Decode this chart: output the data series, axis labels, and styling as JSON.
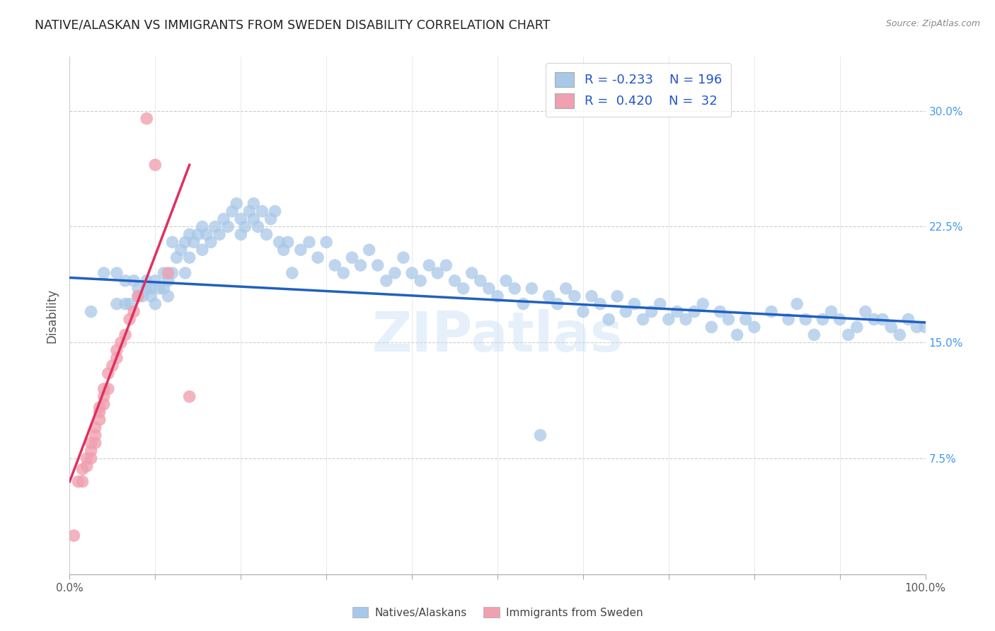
{
  "title": "NATIVE/ALASKAN VS IMMIGRANTS FROM SWEDEN DISABILITY CORRELATION CHART",
  "source": "Source: ZipAtlas.com",
  "ylabel": "Disability",
  "xlim": [
    0.0,
    1.0
  ],
  "ylim": [
    0.0,
    0.335
  ],
  "yticks": [
    0.075,
    0.15,
    0.225,
    0.3
  ],
  "ytick_labels": [
    "7.5%",
    "15.0%",
    "22.5%",
    "30.0%"
  ],
  "xticks": [
    0.0,
    0.1,
    0.2,
    0.3,
    0.4,
    0.5,
    0.6,
    0.7,
    0.8,
    0.9,
    1.0
  ],
  "xtick_labels": [
    "0.0%",
    "",
    "",
    "",
    "",
    "",
    "",
    "",
    "",
    "",
    "100.0%"
  ],
  "blue_color": "#a8c8e8",
  "pink_color": "#f0a0b0",
  "line_blue": "#2060c0",
  "line_pink": "#e03060",
  "legend_R1": "-0.233",
  "legend_N1": "196",
  "legend_R2": "0.420",
  "legend_N2": "32",
  "watermark": "ZIPatlas",
  "blue_scatter_x": [
    0.025,
    0.04,
    0.055,
    0.055,
    0.065,
    0.065,
    0.07,
    0.075,
    0.08,
    0.08,
    0.085,
    0.09,
    0.09,
    0.095,
    0.095,
    0.1,
    0.1,
    0.105,
    0.11,
    0.11,
    0.115,
    0.115,
    0.12,
    0.12,
    0.125,
    0.13,
    0.135,
    0.135,
    0.14,
    0.14,
    0.145,
    0.15,
    0.155,
    0.155,
    0.16,
    0.165,
    0.17,
    0.175,
    0.18,
    0.185,
    0.19,
    0.195,
    0.2,
    0.2,
    0.205,
    0.21,
    0.215,
    0.215,
    0.22,
    0.225,
    0.23,
    0.235,
    0.24,
    0.245,
    0.25,
    0.255,
    0.26,
    0.27,
    0.28,
    0.29,
    0.3,
    0.31,
    0.32,
    0.33,
    0.34,
    0.35,
    0.36,
    0.37,
    0.38,
    0.39,
    0.4,
    0.41,
    0.42,
    0.43,
    0.44,
    0.45,
    0.46,
    0.47,
    0.48,
    0.49,
    0.5,
    0.51,
    0.52,
    0.53,
    0.54,
    0.55,
    0.56,
    0.57,
    0.58,
    0.59,
    0.6,
    0.61,
    0.62,
    0.63,
    0.64,
    0.65,
    0.66,
    0.67,
    0.68,
    0.69,
    0.7,
    0.71,
    0.72,
    0.73,
    0.74,
    0.75,
    0.76,
    0.77,
    0.78,
    0.79,
    0.8,
    0.82,
    0.84,
    0.85,
    0.86,
    0.87,
    0.88,
    0.89,
    0.9,
    0.91,
    0.92,
    0.93,
    0.94,
    0.95,
    0.96,
    0.97,
    0.98,
    0.99,
    1.0
  ],
  "blue_scatter_y": [
    0.17,
    0.195,
    0.175,
    0.195,
    0.175,
    0.19,
    0.175,
    0.19,
    0.18,
    0.185,
    0.18,
    0.185,
    0.19,
    0.18,
    0.185,
    0.175,
    0.19,
    0.185,
    0.195,
    0.185,
    0.19,
    0.18,
    0.195,
    0.215,
    0.205,
    0.21,
    0.195,
    0.215,
    0.22,
    0.205,
    0.215,
    0.22,
    0.21,
    0.225,
    0.22,
    0.215,
    0.225,
    0.22,
    0.23,
    0.225,
    0.235,
    0.24,
    0.23,
    0.22,
    0.225,
    0.235,
    0.23,
    0.24,
    0.225,
    0.235,
    0.22,
    0.23,
    0.235,
    0.215,
    0.21,
    0.215,
    0.195,
    0.21,
    0.215,
    0.205,
    0.215,
    0.2,
    0.195,
    0.205,
    0.2,
    0.21,
    0.2,
    0.19,
    0.195,
    0.205,
    0.195,
    0.19,
    0.2,
    0.195,
    0.2,
    0.19,
    0.185,
    0.195,
    0.19,
    0.185,
    0.18,
    0.19,
    0.185,
    0.175,
    0.185,
    0.09,
    0.18,
    0.175,
    0.185,
    0.18,
    0.17,
    0.18,
    0.175,
    0.165,
    0.18,
    0.17,
    0.175,
    0.165,
    0.17,
    0.175,
    0.165,
    0.17,
    0.165,
    0.17,
    0.175,
    0.16,
    0.17,
    0.165,
    0.155,
    0.165,
    0.16,
    0.17,
    0.165,
    0.175,
    0.165,
    0.155,
    0.165,
    0.17,
    0.165,
    0.155,
    0.16,
    0.17,
    0.165,
    0.165,
    0.16,
    0.155,
    0.165,
    0.16,
    0.16
  ],
  "pink_scatter_x": [
    0.005,
    0.01,
    0.015,
    0.015,
    0.02,
    0.02,
    0.025,
    0.025,
    0.025,
    0.03,
    0.03,
    0.03,
    0.035,
    0.035,
    0.035,
    0.04,
    0.04,
    0.04,
    0.045,
    0.045,
    0.05,
    0.055,
    0.055,
    0.06,
    0.065,
    0.07,
    0.075,
    0.08,
    0.09,
    0.1,
    0.115,
    0.14
  ],
  "pink_scatter_y": [
    0.025,
    0.06,
    0.06,
    0.068,
    0.07,
    0.075,
    0.075,
    0.08,
    0.085,
    0.085,
    0.09,
    0.095,
    0.1,
    0.105,
    0.108,
    0.11,
    0.115,
    0.12,
    0.12,
    0.13,
    0.135,
    0.14,
    0.145,
    0.15,
    0.155,
    0.165,
    0.17,
    0.18,
    0.295,
    0.265,
    0.195,
    0.115
  ],
  "blue_trend_x": [
    0.0,
    1.0
  ],
  "blue_trend_y": [
    0.192,
    0.163
  ],
  "pink_trend_x": [
    0.0,
    0.14
  ],
  "pink_trend_y": [
    0.06,
    0.265
  ]
}
